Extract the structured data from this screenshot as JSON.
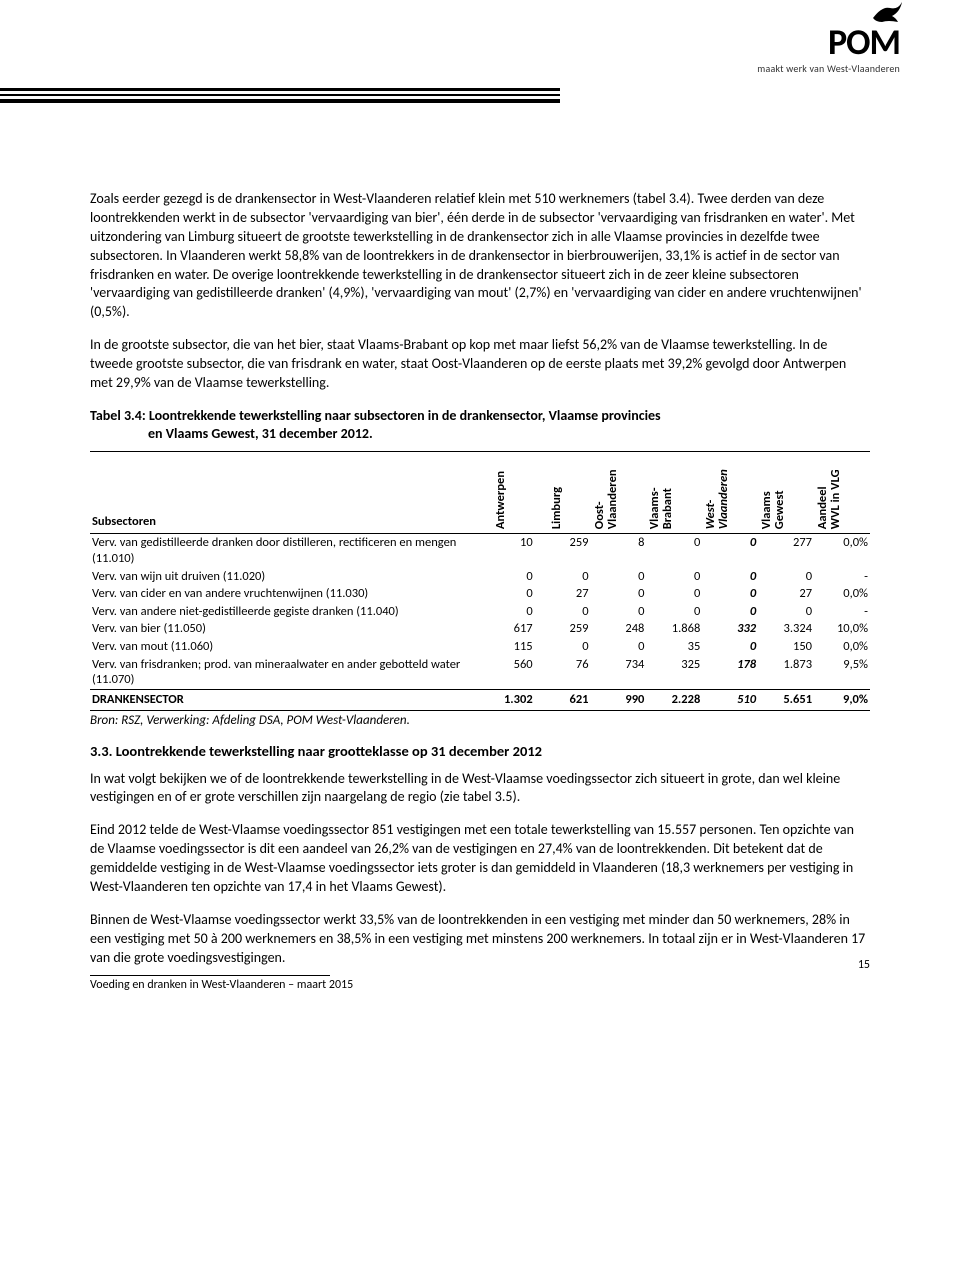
{
  "logo": {
    "brand": "POM",
    "tagline": "maakt werk van West-Vlaanderen"
  },
  "paragraphs": {
    "p1": "Zoals eerder gezegd is de drankensector in West-Vlaanderen relatief klein met 510 werknemers (tabel 3.4). Twee derden van deze loontrekkenden werkt in de subsector 'vervaardiging van bier', één derde in de subsector 'vervaardiging van frisdranken en water'. Met uitzondering van Limburg situeert de grootste tewerkstelling in de drankensector zich in alle Vlaamse provincies in dezelfde twee subsectoren. In Vlaanderen werkt 58,8% van de loontrekkers in de drankensector in bierbrouwerijen, 33,1% is actief in de sector van frisdranken en water. De overige loontrekkende tewerkstelling in de drankensector situeert zich in de zeer kleine subsectoren 'vervaardiging van gedistilleerde dranken' (4,9%), 'vervaardiging van mout' (2,7%) en 'vervaardiging van cider en andere vruchtenwijnen' (0,5%).",
    "p2": "In de grootste subsector, die van het bier, staat Vlaams-Brabant op kop met maar liefst 56,2% van de Vlaamse tewerkstelling. In de tweede grootste subsector, die van frisdrank en water, staat Oost-Vlaanderen op de eerste plaats met 39,2% gevolgd door Antwerpen met 29,9% van de Vlaamse tewerkstelling.",
    "p3": "In wat volgt bekijken we of de loontrekkende tewerkstelling in de West-Vlaamse voedingssector zich situeert in grote, dan wel kleine vestigingen en of er grote verschillen zijn naargelang de regio (zie tabel 3.5).",
    "p4": "Eind 2012 telde de West-Vlaamse voedingssector 851 vestigingen met een totale tewerkstelling van 15.557 personen. Ten opzichte van de Vlaamse voedingssector is dit een aandeel van 26,2% van de vestigingen en 27,4% van de loontrekkenden. Dit betekent dat de gemiddelde vestiging in de West-Vlaamse voedingssector iets groter is dan gemiddeld in Vlaanderen (18,3 werknemers per vestiging in West-Vlaanderen ten opzichte van 17,4 in het Vlaams Gewest).",
    "p5": "Binnen de West-Vlaamse voedingssector werkt 33,5% van de loontrekkenden in een vestiging met minder dan 50 werknemers, 28% in een vestiging met 50 à 200 werknemers en 38,5% in een vestiging met minstens 200 werknemers. In totaal zijn er in West-Vlaanderen 17 van die grote voedingsvestigingen."
  },
  "table": {
    "title_line1": "Tabel 3.4: Loontrekkende tewerkstelling naar subsectoren in de drankensector, Vlaamse provincies",
    "title_line2": "en Vlaams Gewest, 31 december 2012.",
    "header_label": "Subsectoren",
    "columns": [
      "Antwerpen",
      "Limburg",
      "Oost-\nVlaanderen",
      "Vlaams-\nBrabant",
      "West-\nVlaanderen",
      "Vlaams\nGewest",
      "Aandeel\nWVL in VLG"
    ],
    "rows": [
      {
        "label": "Verv. van gedistilleerde dranken door distilleren, rectificeren en mengen (11.010)",
        "v": [
          "10",
          "259",
          "8",
          "0",
          "0",
          "277",
          "0,0%"
        ]
      },
      {
        "label": "Verv. van wijn uit druiven (11.020)",
        "v": [
          "0",
          "0",
          "0",
          "0",
          "0",
          "0",
          "-"
        ]
      },
      {
        "label": "Verv. van cider en van andere vruchtenwijnen (11.030)",
        "v": [
          "0",
          "27",
          "0",
          "0",
          "0",
          "27",
          "0,0%"
        ]
      },
      {
        "label": "Verv. van andere niet-gedistilleerde gegiste dranken (11.040)",
        "v": [
          "0",
          "0",
          "0",
          "0",
          "0",
          "0",
          "-"
        ]
      },
      {
        "label": "Verv. van bier (11.050)",
        "v": [
          "617",
          "259",
          "248",
          "1.868",
          "332",
          "3.324",
          "10,0%"
        ]
      },
      {
        "label": "Verv. van mout (11.060)",
        "v": [
          "115",
          "0",
          "0",
          "35",
          "0",
          "150",
          "0,0%"
        ]
      },
      {
        "label": "Verv. van frisdranken; prod. van mineraalwater en ander gebotteld water (11.070)",
        "v": [
          "560",
          "76",
          "734",
          "325",
          "178",
          "1.873",
          "9,5%"
        ]
      }
    ],
    "total": {
      "label": "DRANKENSECTOR",
      "v": [
        "1.302",
        "621",
        "990",
        "2.228",
        "510",
        "5.651",
        "9,0%"
      ]
    },
    "source": "Bron: RSZ, Verwerking: Afdeling DSA, POM West-Vlaanderen."
  },
  "section33_title": "3.3. Loontrekkende tewerkstelling naar grootteklasse op 31 december 2012",
  "footer": {
    "text": "Voeding en dranken in West-Vlaanderen – maart 2015",
    "page": "15"
  }
}
